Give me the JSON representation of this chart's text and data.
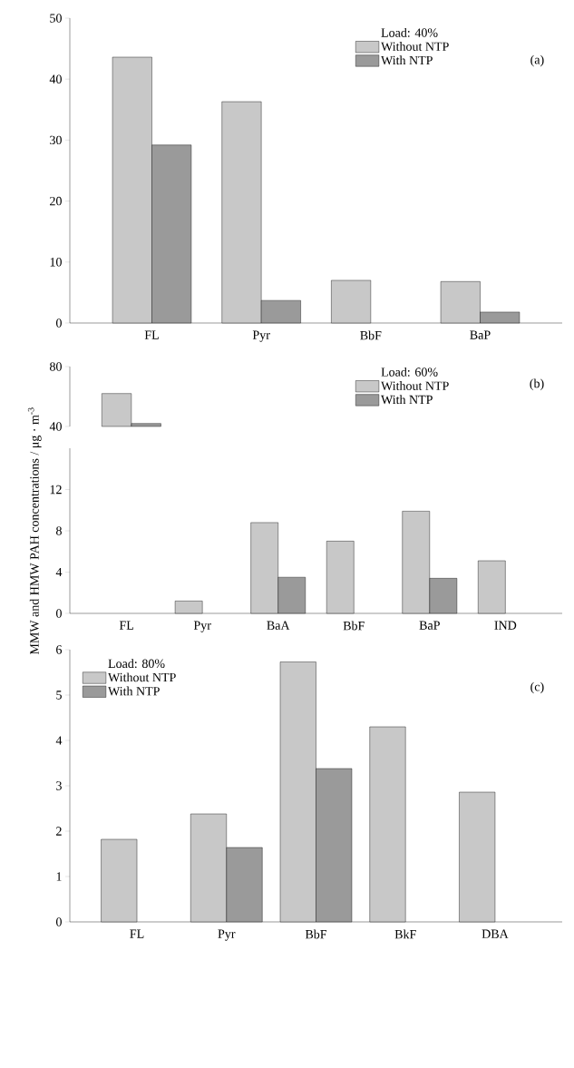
{
  "chart_data": [
    {
      "type": "bar",
      "categories": [
        "FL",
        "Pyr",
        "BbF",
        "BaP"
      ],
      "legend": "top right",
      "legend_title": "Load: 40%",
      "annotations": [
        "(a)"
      ],
      "ylim": [
        0,
        50
      ],
      "yticks": [
        0,
        10,
        20,
        30,
        40,
        50
      ],
      "series": [
        {
          "name": "Without NTP",
          "color": "#c8c8c8",
          "values": [
            43.6,
            36.3,
            7.0,
            6.8
          ]
        },
        {
          "name": "With NTP",
          "color": "#9a9a9a",
          "values": [
            29.2,
            3.7,
            null,
            1.8
          ]
        }
      ]
    },
    {
      "type": "bar",
      "categories": [
        null
      ],
      "tick_labels": "y",
      "legend": "top right",
      "legend_title": "Load: 60%",
      "annotations": [
        "(b)"
      ],
      "ylim": [
        40,
        80
      ],
      "yticks": [
        40,
        80
      ],
      "series": [
        {
          "name": "Without NTP",
          "color": "#c8c8c8",
          "values": [
            62
          ]
        },
        {
          "name": "With NTP",
          "color": "#9a9a9a",
          "values": [
            42
          ]
        }
      ]
    },
    {
      "type": "bar",
      "categories": [
        "FL",
        "Pyr",
        "BaA",
        "BbF",
        "BaP",
        "IND"
      ],
      "ylabel": "MMW and HMW PAH concentrations / μg · m$^{-3}$",
      "ylim": [
        0,
        16
      ],
      "yticks": [
        0,
        4,
        8,
        12
      ],
      "series": [
        {
          "color": "#c8c8c8",
          "values": [
            null,
            1.2,
            8.8,
            7.0,
            9.9,
            5.1
          ]
        },
        {
          "color": "#9a9a9a",
          "values": [
            null,
            null,
            3.5,
            null,
            3.4,
            null
          ]
        }
      ]
    },
    {
      "type": "bar",
      "categories": [
        "FL",
        "Pyr",
        "BbF",
        "BkF",
        "DBA"
      ],
      "legend": "top left",
      "legend_title": "Load: 80%",
      "annotations": [
        "(c)"
      ],
      "ylim": [
        0,
        6
      ],
      "yticks": [
        0,
        1,
        2,
        3,
        4,
        5,
        6
      ],
      "series": [
        {
          "name": "Without NTP",
          "color": "#c8c8c8",
          "values": [
            1.82,
            2.38,
            5.73,
            4.3,
            2.86
          ]
        },
        {
          "name": "With NTP",
          "color": "#9a9a9a",
          "values": [
            null,
            1.64,
            3.38,
            null,
            null
          ]
        }
      ]
    }
  ]
}
